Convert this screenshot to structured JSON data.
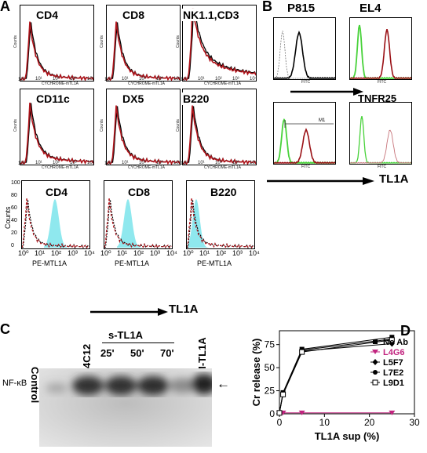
{
  "panel_letters": {
    "a": "A",
    "b": "B",
    "c": "C",
    "d": "D"
  },
  "panel_a": {
    "row1": [
      "CD4",
      "CD8",
      "NK1.1,CD3"
    ],
    "row2": [
      "CD11c",
      "DX5",
      "B220"
    ],
    "row3": [
      "CD4",
      "CD8",
      "B220"
    ],
    "small_x_label": "CYCHROME-mTL1A",
    "small_y_label": "Counts",
    "row3_y_label": "Counts",
    "row3_x_label": "PE-MTL1A",
    "x_ticks": [
      "10⁰",
      "10¹",
      "10²",
      "10³",
      "10⁴"
    ],
    "y_ticks_row3": [
      "0",
      "20",
      "40",
      "60",
      "80",
      "100"
    ],
    "bottom_arrow_label": "TL1A",
    "colors": {
      "curve": "#b0141b",
      "isotype": "#000000",
      "fill": "#8fe8ee"
    }
  },
  "panel_b": {
    "col_titles": [
      "P815",
      "EL4"
    ],
    "middle_arrow_label": "TNFR25",
    "bottom_arrow_label": "TL1A",
    "gate_label": "M1",
    "tiny_x_label": "FITC",
    "colors": {
      "green": "#48d23a",
      "red": "#9a1015",
      "black": "#000000"
    }
  },
  "panel_c": {
    "lanes": [
      "Control",
      "4C12",
      "M-TL1A"
    ],
    "group_label": "s-TL1A",
    "time_labels": [
      "25'",
      "50'",
      "70'"
    ],
    "band_label": "NF-κB",
    "arrow": "←"
  },
  "chart_data": {
    "type": "line",
    "xlabel": "TL1A sup (%)",
    "ylabel": "Cr release (%)",
    "xlim": [
      0,
      30
    ],
    "ylim": [
      0,
      90
    ],
    "x_ticks": [
      0,
      10,
      20,
      30
    ],
    "y_ticks": [
      0,
      25,
      50,
      75
    ],
    "x": [
      0,
      0.8,
      5,
      25
    ],
    "series": [
      {
        "name": "No Ab",
        "values": [
          1,
          23,
          70,
          83
        ],
        "color": "#000000",
        "marker": "square"
      },
      {
        "name": "L4G6",
        "values": [
          1,
          1,
          1,
          1
        ],
        "color": "#c2247f",
        "marker": "triangle-down"
      },
      {
        "name": "L5F7",
        "values": [
          1,
          22,
          68,
          76
        ],
        "color": "#000000",
        "marker": "diamond"
      },
      {
        "name": "L7E2",
        "values": [
          1,
          23,
          69,
          81
        ],
        "color": "#000000",
        "marker": "circle"
      },
      {
        "name": "L9D1",
        "values": [
          1,
          21,
          67,
          80
        ],
        "color": "#000000",
        "marker": "square-open"
      }
    ]
  }
}
